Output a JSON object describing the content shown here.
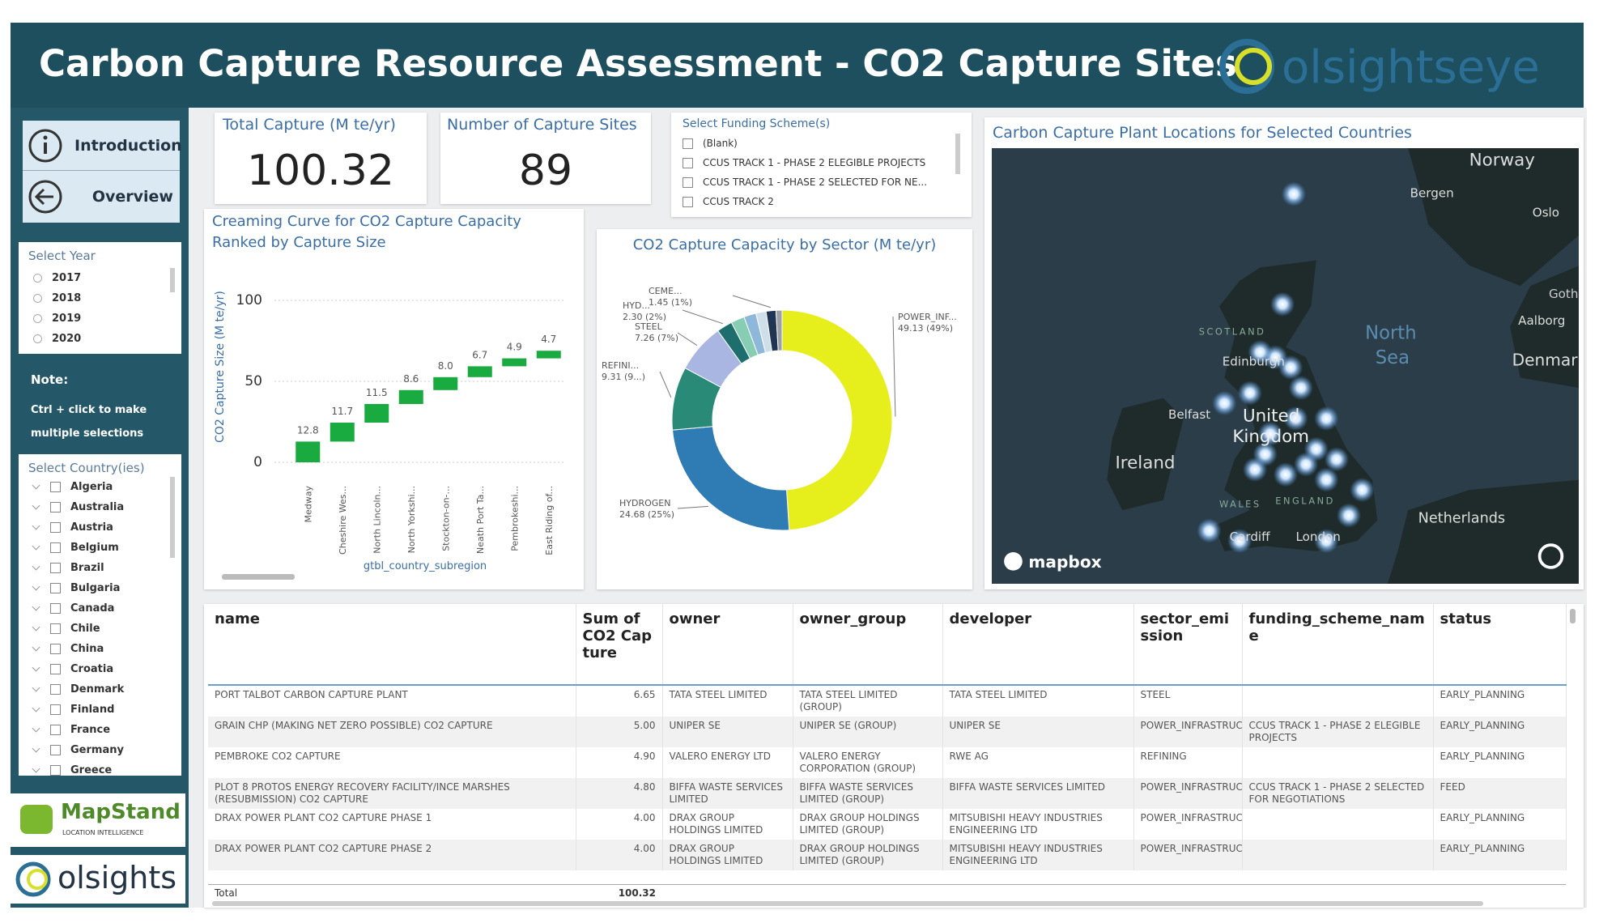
{
  "header": {
    "title": "Carbon Capture Resource Assessment - CO2 Capture Sites",
    "logo": "olsightseye"
  },
  "sidebar": {
    "nav": [
      "Introduction",
      "Overview"
    ],
    "year_slicer": {
      "title": "Select Year",
      "options": [
        "2017",
        "2018",
        "2019",
        "2020"
      ]
    },
    "note": {
      "title": "Note:",
      "text": "Ctrl + click to make multiple selections"
    },
    "country_slicer": {
      "title": "Select Country(ies)",
      "options": [
        "Algeria",
        "Australia",
        "Austria",
        "Belgium",
        "Brazil",
        "Bulgaria",
        "Canada",
        "Chile",
        "China",
        "Croatia",
        "Denmark",
        "Finland",
        "France",
        "Germany",
        "Greece"
      ]
    },
    "logos": {
      "mapstand": "MapStand",
      "mapstand_tagline": "LOCATION INTELLIGENCE",
      "olsights": "olsights"
    }
  },
  "cards": [
    {
      "title": "Total Capture (M te/yr)",
      "value": 100.32
    },
    {
      "title": "Number of Capture Sites",
      "value": 89
    }
  ],
  "funding_slicer": {
    "title": "Select Funding Scheme(s)",
    "options": [
      "(Blank)",
      "CCUS TRACK 1 - PHASE 2 ELEGIBLE PROJECTS",
      "CCUS TRACK 1 - PHASE 2 SELECTED FOR NE...",
      "CCUS TRACK 2"
    ]
  },
  "map": {
    "title": "Carbon Capture Plant Locations for Selected Countries",
    "labels": [
      "Norway",
      "Bergen",
      "Oslo",
      "Goth",
      "Aalborg",
      "Denmar",
      "North",
      "Sea",
      "SCOTLAND",
      "Edinburgh",
      "Belfast",
      "United",
      "Kingdom",
      "Ireland",
      "WALES",
      "ENGLAND",
      "Cardiff",
      "London",
      "Netherlands"
    ],
    "attribution": "mapbox"
  },
  "chart_data": [
    {
      "type": "waterfall",
      "title": "Creaming Curve for CO2 Capture Capacity",
      "subtitle": "Ranked by Capture Size",
      "y_label": "CO2 Capture Size (M te/yr)",
      "x_label": "gtbl_country_subregion",
      "categories": [
        "Medway",
        "Cheshire Wes...",
        "North Lincoln...",
        "North Yorkshi...",
        "Stockton-on-...",
        "Neath Port Ta...",
        "Pembrokeshi...",
        "East Riding of..."
      ],
      "values": [
        12.8,
        11.7,
        11.5,
        8.6,
        8.0,
        6.7,
        4.9,
        4.7
      ],
      "value_labels": [
        "12.8",
        "11.7",
        "11.5",
        "8.6",
        "8.0",
        "6.7",
        "4.9",
        "4.7"
      ],
      "color": "#1aab40",
      "ylim": [
        -10,
        115
      ],
      "yticks": [
        0,
        50,
        100
      ],
      "grid": true
    },
    {
      "type": "donut",
      "title": "CO2 Capture Capacity by Sector (M te/yr)",
      "categories": [
        "POWER_INF...",
        "HYDROGEN",
        "REFINI...",
        "STEEL",
        "HYD...",
        null,
        null,
        null,
        "CEME...",
        null
      ],
      "values": [
        49.13,
        24.68,
        9.31,
        7.26,
        2.3,
        2.0,
        1.8,
        1.5,
        1.45,
        0.89
      ],
      "value_labels": [
        "49.13 (49%)",
        "24.68 (25%)",
        "9.31 (9...)",
        "7.26 (7%)",
        "2.30 (2%)",
        null,
        null,
        null,
        "1.45 (1%)",
        null
      ],
      "colors": [
        "#e6ee1c",
        "#2f7bb3",
        "#2a8a78",
        "#a9b6e2",
        "#1e6e6e",
        "#86cdb4",
        "#8db8d9",
        "#cfdfea",
        "#1f3552",
        "#9aa0a6"
      ]
    }
  ],
  "table": {
    "columns": [
      "name",
      "Sum of CO2 Capture",
      "owner",
      "owner_group",
      "developer",
      "sector_emission",
      "funding_scheme_name",
      "status"
    ],
    "rows": [
      [
        "PORT TALBOT CARBON CAPTURE PLANT",
        "6.65",
        "TATA STEEL LIMITED",
        "TATA STEEL LIMITED (GROUP)",
        "TATA STEEL LIMITED",
        "STEEL",
        null,
        "EARLY_PLANNING"
      ],
      [
        "GRAIN CHP (MAKING NET ZERO POSSIBLE) CO2 CAPTURE",
        "5.00",
        "UNIPER SE",
        "UNIPER SE (GROUP)",
        "UNIPER SE",
        "POWER_INFRASTRUCTURE",
        "CCUS TRACK 1 - PHASE 2 ELEGIBLE PROJECTS",
        "EARLY_PLANNING"
      ],
      [
        "PEMBROKE CO2 CAPTURE",
        "4.90",
        "VALERO ENERGY LTD",
        "VALERO ENERGY CORPORATION (GROUP)",
        "RWE AG",
        "REFINING",
        null,
        "EARLY_PLANNING"
      ],
      [
        "PLOT 8 PROTOS ENERGY RECOVERY FACILITY/INCE MARSHES (RESUBMISSION) CO2 CAPTURE",
        "4.80",
        "BIFFA WASTE SERVICES LIMITED",
        "BIFFA WASTE SERVICES LIMITED (GROUP)",
        "BIFFA WASTE SERVICES LIMITED",
        "POWER_INFRASTRUCTURE",
        "CCUS TRACK 1 - PHASE 2 SELECTED FOR NEGOTIATIONS",
        "FEED"
      ],
      [
        "DRAX POWER PLANT CO2 CAPTURE PHASE 1",
        "4.00",
        "DRAX GROUP HOLDINGS LIMITED",
        "DRAX GROUP HOLDINGS LIMITED (GROUP)",
        "MITSUBISHI HEAVY INDUSTRIES ENGINEERING LTD",
        "POWER_INFRASTRUCTURE",
        null,
        "EARLY_PLANNING"
      ],
      [
        "DRAX POWER PLANT CO2 CAPTURE PHASE 2",
        "4.00",
        "DRAX GROUP HOLDINGS LIMITED",
        "DRAX GROUP HOLDINGS LIMITED (GROUP)",
        "MITSUBISHI HEAVY INDUSTRIES ENGINEERING LTD",
        "POWER_INFRASTRUCTURE",
        null,
        "EARLY_PLANNING"
      ]
    ],
    "total": {
      "label": "Total",
      "value": "100.32"
    }
  }
}
